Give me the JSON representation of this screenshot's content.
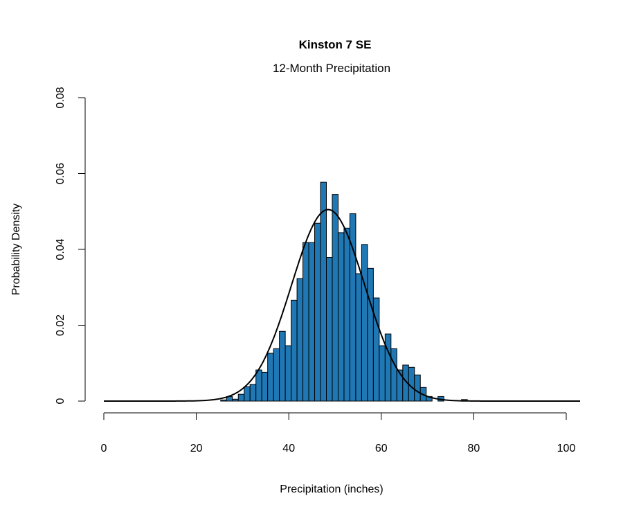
{
  "chart_data": {
    "type": "bar",
    "title": "Kinston 7 SE",
    "subtitle": "12-Month Precipitation",
    "xlabel": "Precipitation (inches)",
    "ylabel": "Probability Density",
    "xlim": [
      0,
      103
    ],
    "ylim": [
      0,
      0.08
    ],
    "x_ticks": [
      0,
      20,
      40,
      60,
      80,
      100
    ],
    "x_tick_labels": [
      "0",
      "20",
      "40",
      "60",
      "80",
      "100"
    ],
    "y_ticks": [
      0,
      0.02,
      0.04,
      0.06,
      0.08
    ],
    "y_tick_labels": [
      "0",
      "0.02",
      "0.04",
      "0.06",
      "0.08"
    ],
    "grid": false,
    "bar_color": "#1f77b4",
    "histogram": {
      "first_bin_start": 25.27,
      "bin_width": 1.27,
      "densities": [
        0.0003,
        0.0012,
        0.0005,
        0.0018,
        0.0038,
        0.0044,
        0.0082,
        0.0076,
        0.0126,
        0.0138,
        0.0184,
        0.0146,
        0.0266,
        0.0323,
        0.0418,
        0.0418,
        0.0469,
        0.0577,
        0.0379,
        0.0545,
        0.0444,
        0.0456,
        0.0494,
        0.0336,
        0.0413,
        0.035,
        0.0272,
        0.0146,
        0.0177,
        0.0138,
        0.0082,
        0.0095,
        0.0089,
        0.0069,
        0.0036,
        0.0012,
        0,
        0.0012,
        0,
        0,
        0,
        0.0004
      ]
    },
    "normal_curve": {
      "mean": 48.5,
      "sd": 7.9,
      "color": "#000000"
    }
  }
}
